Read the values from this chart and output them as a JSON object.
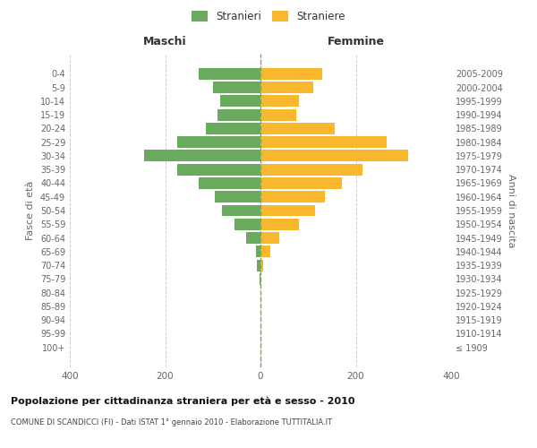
{
  "age_groups": [
    "100+",
    "95-99",
    "90-94",
    "85-89",
    "80-84",
    "75-79",
    "70-74",
    "65-69",
    "60-64",
    "55-59",
    "50-54",
    "45-49",
    "40-44",
    "35-39",
    "30-34",
    "25-29",
    "20-24",
    "15-19",
    "10-14",
    "5-9",
    "0-4"
  ],
  "birth_years": [
    "≤ 1909",
    "1910-1914",
    "1915-1919",
    "1920-1924",
    "1925-1929",
    "1930-1934",
    "1935-1939",
    "1940-1944",
    "1945-1949",
    "1950-1954",
    "1955-1959",
    "1960-1964",
    "1965-1969",
    "1970-1974",
    "1975-1979",
    "1980-1984",
    "1985-1989",
    "1990-1994",
    "1995-1999",
    "2000-2004",
    "2005-2009"
  ],
  "males": [
    0,
    0,
    0,
    0,
    0,
    2,
    8,
    10,
    30,
    55,
    80,
    95,
    130,
    175,
    245,
    175,
    115,
    90,
    85,
    100,
    130
  ],
  "females": [
    0,
    0,
    0,
    0,
    0,
    0,
    5,
    20,
    40,
    80,
    115,
    135,
    170,
    215,
    310,
    265,
    155,
    75,
    80,
    110,
    130
  ],
  "male_color": "#6aaa5e",
  "female_color": "#f9b72d",
  "bar_height": 0.85,
  "xlim": 400,
  "title": "Popolazione per cittadinanza straniera per età e sesso - 2010",
  "subtitle": "COMUNE DI SCANDICCI (FI) - Dati ISTAT 1° gennaio 2010 - Elaborazione TUTTITALIA.IT",
  "xlabel_left": "Maschi",
  "xlabel_right": "Femmine",
  "ylabel_left": "Fasce di età",
  "ylabel_right": "Anni di nascita",
  "legend_male": "Stranieri",
  "legend_female": "Straniere",
  "bg_color": "#ffffff",
  "grid_color": "#cccccc",
  "text_color": "#666666"
}
